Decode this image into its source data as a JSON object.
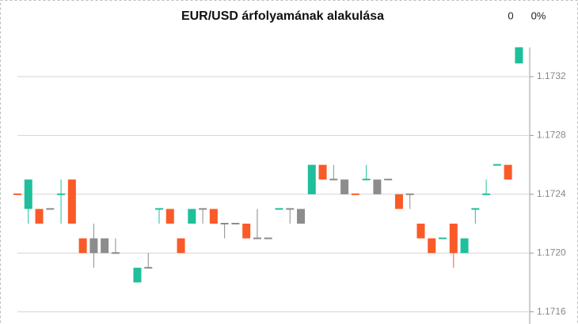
{
  "chart_data": {
    "type": "candlestick",
    "title": "EUR/USD árfolyamának alakulása",
    "change": 0,
    "change_pct": "0%",
    "ylim": [
      1.1715,
      1.1734
    ],
    "yticks": [
      1.1716,
      {
        "value": 1.172,
        "label": "1.1720"
      },
      1.1724,
      1.1728,
      1.1732
    ],
    "grid": true,
    "open": [
      1.1724,
      1.1723,
      1.1723,
      1.1723,
      1.1724,
      1.1725,
      1.1721,
      1.1721,
      1.1721,
      1.172,
      null,
      1.1718,
      1.1719,
      1.1723,
      1.1723,
      1.1721,
      1.1722,
      1.1723,
      1.1723,
      1.1722,
      1.1722,
      1.1722,
      1.1721,
      1.1721,
      1.1723,
      1.1723,
      1.1723,
      1.1724,
      1.1726,
      1.1725,
      1.1725,
      1.1724,
      1.1725,
      1.1725,
      1.1725,
      1.1724,
      1.1724,
      1.1722,
      1.1721,
      1.1721,
      1.1722,
      1.172,
      1.1723,
      1.1724,
      1.1726,
      1.1726,
      1.17329
    ],
    "high": [
      1.1724,
      1.1725,
      1.1723,
      1.1723,
      1.1725,
      1.1725,
      1.1721,
      1.1722,
      1.1721,
      1.1721,
      null,
      1.1719,
      1.172,
      1.1723,
      1.1723,
      1.1721,
      1.1723,
      1.1723,
      1.1723,
      1.1722,
      1.1722,
      1.1722,
      1.1723,
      1.1721,
      1.1723,
      1.1723,
      1.1723,
      1.1726,
      1.1726,
      1.1726,
      1.1725,
      1.1724,
      1.1726,
      1.1725,
      1.1725,
      1.1724,
      1.1724,
      1.1722,
      1.1721,
      1.1721,
      1.1722,
      1.1721,
      1.1723,
      1.1725,
      1.1726,
      1.1726,
      1.1734
    ],
    "low": [
      1.1724,
      1.1722,
      1.1722,
      1.1723,
      1.1722,
      1.1722,
      1.172,
      1.1719,
      1.172,
      1.172,
      null,
      1.1718,
      1.1719,
      1.1722,
      1.1722,
      1.172,
      1.1722,
      1.1722,
      1.1722,
      1.1721,
      1.1722,
      1.1721,
      1.1721,
      1.1721,
      1.1723,
      1.1722,
      1.1722,
      1.1724,
      1.1725,
      1.1725,
      1.1724,
      1.1724,
      1.1725,
      1.1724,
      1.1725,
      1.1723,
      1.1723,
      1.1721,
      1.172,
      1.1721,
      1.1719,
      1.172,
      1.1722,
      1.1724,
      1.1726,
      1.1725,
      1.17329
    ],
    "close": [
      1.1724,
      1.1725,
      1.1722,
      1.1723,
      1.1724,
      1.1722,
      1.172,
      1.172,
      1.172,
      1.172,
      null,
      1.1719,
      1.1719,
      1.1723,
      1.1722,
      1.172,
      1.1723,
      1.1723,
      1.1722,
      1.1722,
      1.1722,
      1.1721,
      1.1721,
      1.1721,
      1.1723,
      1.1723,
      1.1722,
      1.1726,
      1.1725,
      1.1725,
      1.1724,
      1.1724,
      1.1725,
      1.1724,
      1.1725,
      1.1723,
      1.1724,
      1.1721,
      1.172,
      1.1721,
      1.172,
      1.1721,
      1.1723,
      1.1724,
      1.1726,
      1.1725,
      1.1734
    ],
    "colors": [
      "#fa5a28",
      "#1fbf9b",
      "#fa5a28",
      "#8c8c8c",
      "#1fbf9b",
      "#fa5a28",
      "#fa5a28",
      "#8c8c8c",
      "#8c8c8c",
      "#8c8c8c",
      null,
      "#1fbf9b",
      "#8c8c8c",
      "#1fbf9b",
      "#fa5a28",
      "#fa5a28",
      "#1fbf9b",
      "#8c8c8c",
      "#fa5a28",
      "#8c8c8c",
      "#8c8c8c",
      "#fa5a28",
      "#8c8c8c",
      "#8c8c8c",
      "#1fbf9b",
      "#8c8c8c",
      "#8c8c8c",
      "#1fbf9b",
      "#fa5a28",
      "#8c8c8c",
      "#8c8c8c",
      "#fa5a28",
      "#1fbf9b",
      "#8c8c8c",
      "#8c8c8c",
      "#fa5a28",
      "#8c8c8c",
      "#fa5a28",
      "#fa5a28",
      "#1fbf9b",
      "#fa5a28",
      "#1fbf9b",
      "#1fbf9b",
      "#1fbf9b",
      "#1fbf9b",
      "#fa5a28",
      "#1fbf9b"
    ]
  }
}
